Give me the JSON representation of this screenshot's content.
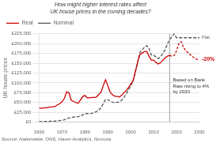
{
  "chart_data": {
    "type": "line",
    "title": "How might higher interest rates affect UK house prices in the coming decades?",
    "ylabel": "UK house prices",
    "source": "Source: Nationwide, ONS, Haver Analytics, Nomura",
    "annotations": [
      "-20%",
      "Flat",
      "Based on Bank\nRate rising to 4%\nby 2030"
    ],
    "vline": 2017,
    "x": [
      1960,
      1961,
      1962,
      1963,
      1964,
      1965,
      1966,
      1967,
      1968,
      1969,
      1970,
      1971,
      1972,
      1973,
      1974,
      1975,
      1976,
      1977,
      1978,
      1979,
      1980,
      1981,
      1982,
      1983,
      1984,
      1985,
      1986,
      1987,
      1988,
      1989,
      1990,
      1991,
      1992,
      1993,
      1994,
      1995,
      1996,
      1997,
      1998,
      1999,
      2000,
      2001,
      2002,
      2003,
      2004,
      2005,
      2006,
      2007,
      2008,
      2009,
      2010,
      2011,
      2012,
      2013,
      2014,
      2015,
      2016,
      2017,
      2018,
      2019,
      2020,
      2021,
      2022,
      2023,
      2024,
      2025,
      2026,
      2027,
      2028,
      2029,
      2030
    ],
    "series": [
      {
        "name": "Real",
        "color": "#cc0000",
        "line_style": "solid",
        "values": [
          35000,
          35500,
          36000,
          36500,
          37500,
          38500,
          39000,
          40000,
          44000,
          47000,
          52000,
          60000,
          77000,
          75000,
          56000,
          53000,
          50000,
          48000,
          56000,
          65000,
          68000,
          62000,
          62000,
          63000,
          63000,
          64000,
          70000,
          76000,
          93000,
          108000,
          93000,
          77000,
          70000,
          66000,
          66000,
          64000,
          68000,
          75000,
          80000,
          88000,
          97000,
          105000,
          128000,
          152000,
          172000,
          176000,
          180000,
          180000,
          168000,
          158000,
          158000,
          152000,
          148000,
          151000,
          158000,
          163000,
          168000,
          170000,
          168000,
          170000,
          182000,
          200000,
          205000,
          192000,
          182000,
          177000,
          172000,
          167000,
          162000,
          160000,
          160000
        ]
      },
      {
        "name": "Nominal",
        "color": "#555555",
        "line_style": "dashed",
        "values": [
          1500,
          1600,
          1700,
          1800,
          2000,
          2200,
          2400,
          2700,
          3200,
          4000,
          4800,
          6000,
          8500,
          10500,
          11500,
          13000,
          13500,
          14000,
          15500,
          18500,
          21500,
          22000,
          21500,
          22500,
          24500,
          26500,
          30500,
          36500,
          47500,
          57500,
          57000,
          54000,
          51000,
          49500,
          50500,
          51500,
          55500,
          62500,
          71500,
          81500,
          92500,
          104000,
          127000,
          154000,
          177000,
          184000,
          191000,
          195000,
          187000,
          171000,
          171000,
          166000,
          162000,
          166000,
          175000,
          184000,
          199000,
          210000,
          218000,
          225000,
          215000,
          215000,
          215000,
          215000,
          215000,
          215000,
          215000,
          215000,
          215000,
          215000,
          215000
        ]
      }
    ],
    "xlim": [
      1960,
      2030
    ],
    "xticks": [
      1960,
      1970,
      1980,
      1990,
      2000,
      2010,
      2020,
      2030
    ],
    "ylim": [
      0,
      225000
    ],
    "yticks": [
      {
        "value": 0,
        "label": "£0"
      },
      {
        "value": 25000,
        "label": "£25,000"
      },
      {
        "value": 50000,
        "label": "£50,000"
      },
      {
        "value": 75000,
        "label": "£75,000"
      },
      {
        "value": 100000,
        "label": "£100,000"
      },
      {
        "value": 125000,
        "label": "£125,000"
      },
      {
        "value": 150000,
        "label": "£150,000"
      },
      {
        "value": 175000,
        "label": "£175,000"
      },
      {
        "value": 200000,
        "label": "£200,000"
      },
      {
        "value": 225000,
        "label": "£225,000"
      }
    ],
    "grid": true,
    "legend": "upper left"
  }
}
